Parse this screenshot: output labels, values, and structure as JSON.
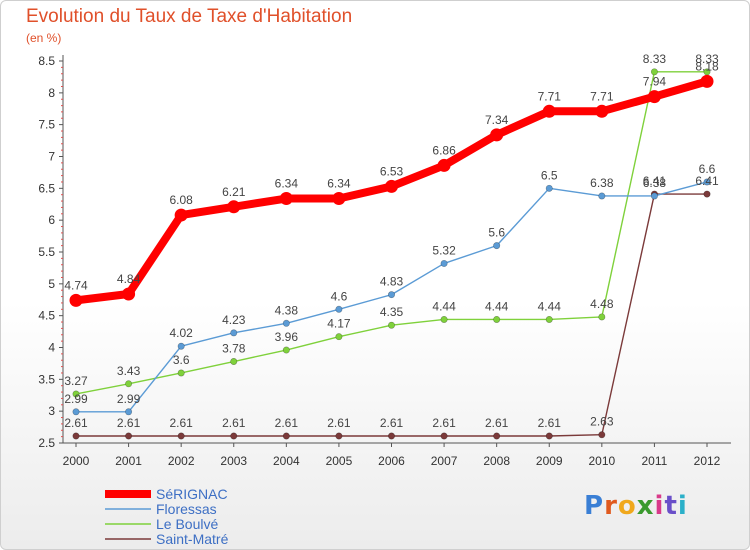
{
  "title": "Evolution du Taux de Taxe d'Habitation",
  "subtitle": "(en %)",
  "logo": {
    "text": "Proxiti",
    "letter_colors": [
      "#3a7fd5",
      "#e05a1e",
      "#f0a81c",
      "#3a9a2e",
      "#d93a8a",
      "#6a4fc9",
      "#2bb0c9"
    ]
  },
  "chart_data": {
    "type": "line",
    "title": "Evolution du Taux de Taxe d'Habitation",
    "subtitle": "(en %)",
    "xlabel": "",
    "ylabel": "",
    "x": [
      "2000",
      "2001",
      "2002",
      "2003",
      "2004",
      "2005",
      "2006",
      "2007",
      "2008",
      "2009",
      "2010",
      "2011",
      "2012"
    ],
    "ylim": [
      2.5,
      8.5
    ],
    "yticks": [
      "2.5",
      "3",
      "3.5",
      "4",
      "4.5",
      "5",
      "5.5",
      "6",
      "6.5",
      "7",
      "7.5",
      "8",
      "8.5"
    ],
    "grid": false,
    "legend_position": "bottom-left",
    "series": [
      {
        "name": "SéRIGNAC",
        "color": "#ff0000",
        "values": [
          4.74,
          4.84,
          6.08,
          6.21,
          6.34,
          6.34,
          6.53,
          6.86,
          7.34,
          7.71,
          7.71,
          7.94,
          8.18
        ],
        "labels": [
          "4.74",
          "4.84",
          "6.08",
          "6.21",
          "6.34",
          "6.34",
          "6.53",
          "6.86",
          "7.34",
          "7.71",
          "7.71",
          "7.94",
          "8.18"
        ]
      },
      {
        "name": "Floressas",
        "color": "#5b9bd5",
        "values": [
          2.99,
          2.99,
          4.02,
          4.23,
          4.38,
          4.6,
          4.83,
          5.32,
          5.6,
          6.5,
          6.38,
          6.38,
          6.6
        ],
        "labels": [
          "2.99",
          "2.99",
          "4.02",
          "4.23",
          "4.38",
          "4.6",
          "4.83",
          "5.32",
          "5.6",
          "6.5",
          "6.38",
          "6.38",
          "6.6"
        ]
      },
      {
        "name": "Le Boulvé",
        "color": "#7fd13b",
        "values": [
          3.27,
          3.43,
          3.6,
          3.78,
          3.96,
          4.17,
          4.35,
          4.44,
          4.44,
          4.44,
          4.48,
          8.33,
          8.33
        ],
        "labels": [
          "3.27",
          "3.43",
          "3.6",
          "3.78",
          "3.96",
          "4.17",
          "4.35",
          "4.44",
          "4.44",
          "4.44",
          "4.48",
          "8.33",
          "8.33"
        ]
      },
      {
        "name": "Saint-Matré",
        "color": "#7b3a3a",
        "values": [
          2.61,
          2.61,
          2.61,
          2.61,
          2.61,
          2.61,
          2.61,
          2.61,
          2.61,
          2.61,
          2.63,
          6.41,
          6.41
        ],
        "labels": [
          "2.61",
          "2.61",
          "2.61",
          "2.61",
          "2.61",
          "2.61",
          "2.61",
          "2.61",
          "2.61",
          "2.61",
          "2.63",
          "6.41",
          "6.41"
        ]
      }
    ]
  }
}
